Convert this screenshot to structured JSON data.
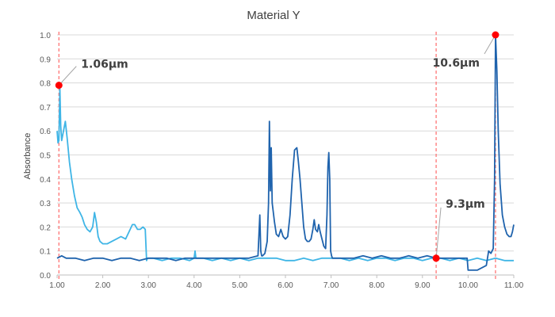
{
  "chart_data": {
    "type": "line",
    "title": "Material Y",
    "ylabel": "Absorbance",
    "xlabel": "",
    "xlim": [
      1.0,
      11.0
    ],
    "ylim": [
      0.0,
      1.0
    ],
    "x_ticks": [
      "1.00",
      "2.00",
      "3.00",
      "4.00",
      "5.00",
      "6.00",
      "7.00",
      "8.00",
      "9.00",
      "10.00",
      "11.00"
    ],
    "x_tick_values": [
      1,
      2,
      3,
      4,
      5,
      6,
      7,
      8,
      9,
      10,
      11
    ],
    "y_ticks": [
      "0.0",
      "0.1",
      "0.2",
      "0.3",
      "0.4",
      "0.5",
      "0.6",
      "0.7",
      "0.8",
      "0.9",
      "1.0"
    ],
    "y_tick_values": [
      0,
      0.1,
      0.2,
      0.3,
      0.4,
      0.5,
      0.6,
      0.7,
      0.8,
      0.9,
      1.0
    ],
    "grid": true,
    "colors": {
      "light": "#3fb5e6",
      "dark": "#1f63ad",
      "marker": "#ff0000",
      "guide": "#ff6b6b"
    },
    "series": [
      {
        "color": "#3fb5e6",
        "x": [
          1.0,
          1.02,
          1.04,
          1.06,
          1.08,
          1.1,
          1.14,
          1.18,
          1.22,
          1.27,
          1.32,
          1.38,
          1.44,
          1.5,
          1.55,
          1.6,
          1.66,
          1.72,
          1.78,
          1.82,
          1.86,
          1.9,
          1.94,
          2.0,
          2.1,
          2.2,
          2.3,
          2.4,
          2.5,
          2.6,
          2.65,
          2.7,
          2.76,
          2.82,
          2.88,
          2.93,
          2.96,
          2.98,
          3.0,
          3.1,
          3.3,
          3.5,
          3.7,
          3.9,
          4.0,
          4.02,
          4.04,
          4.2,
          4.4,
          4.6,
          4.8,
          5.0,
          5.2,
          5.4,
          5.6,
          5.8,
          6.0,
          6.2,
          6.4,
          6.6,
          6.8,
          7.0,
          7.2,
          7.4,
          7.6,
          7.8,
          8.0,
          8.2,
          8.4,
          8.6,
          8.8,
          9.0,
          9.2,
          9.4,
          9.6,
          9.8,
          10.0,
          10.2,
          10.4,
          10.6,
          10.8,
          11.0
        ],
        "y": [
          0.6,
          0.55,
          0.56,
          0.78,
          0.62,
          0.56,
          0.6,
          0.64,
          0.57,
          0.47,
          0.4,
          0.33,
          0.28,
          0.26,
          0.24,
          0.21,
          0.19,
          0.18,
          0.2,
          0.26,
          0.22,
          0.16,
          0.14,
          0.13,
          0.13,
          0.14,
          0.15,
          0.16,
          0.15,
          0.19,
          0.21,
          0.21,
          0.19,
          0.19,
          0.2,
          0.19,
          0.06,
          0.07,
          0.07,
          0.07,
          0.06,
          0.07,
          0.07,
          0.06,
          0.07,
          0.1,
          0.07,
          0.07,
          0.06,
          0.07,
          0.06,
          0.07,
          0.06,
          0.07,
          0.07,
          0.07,
          0.06,
          0.06,
          0.07,
          0.06,
          0.07,
          0.07,
          0.07,
          0.06,
          0.07,
          0.06,
          0.07,
          0.07,
          0.06,
          0.07,
          0.07,
          0.06,
          0.07,
          0.07,
          0.06,
          0.07,
          0.06,
          0.07,
          0.06,
          0.07,
          0.06,
          0.06
        ]
      },
      {
        "color": "#1f63ad",
        "x": [
          1.0,
          1.1,
          1.2,
          1.4,
          1.6,
          1.8,
          2.0,
          2.2,
          2.4,
          2.6,
          2.8,
          3.0,
          3.2,
          3.4,
          3.6,
          3.8,
          4.0,
          4.2,
          4.4,
          4.6,
          4.8,
          5.0,
          5.2,
          5.4,
          5.44,
          5.46,
          5.48,
          5.5,
          5.55,
          5.6,
          5.63,
          5.65,
          5.67,
          5.69,
          5.71,
          5.73,
          5.76,
          5.8,
          5.85,
          5.9,
          5.95,
          6.0,
          6.05,
          6.1,
          6.15,
          6.2,
          6.25,
          6.28,
          6.32,
          6.36,
          6.4,
          6.44,
          6.48,
          6.52,
          6.56,
          6.6,
          6.63,
          6.66,
          6.7,
          6.73,
          6.76,
          6.8,
          6.84,
          6.88,
          6.91,
          6.93,
          6.95,
          6.97,
          6.99,
          7.01,
          7.03,
          7.1,
          7.3,
          7.5,
          7.7,
          7.9,
          8.1,
          8.3,
          8.5,
          8.7,
          8.9,
          9.1,
          9.3,
          9.5,
          9.7,
          9.9,
          9.98,
          10.0,
          10.2,
          10.4,
          10.45,
          10.5,
          10.55,
          10.58,
          10.6,
          10.63,
          10.66,
          10.7,
          10.75,
          10.8,
          10.85,
          10.9,
          10.94,
          10.97,
          11.0
        ],
        "y": [
          0.07,
          0.08,
          0.07,
          0.07,
          0.06,
          0.07,
          0.07,
          0.06,
          0.07,
          0.07,
          0.06,
          0.07,
          0.07,
          0.07,
          0.06,
          0.07,
          0.07,
          0.07,
          0.07,
          0.07,
          0.07,
          0.07,
          0.07,
          0.08,
          0.25,
          0.1,
          0.08,
          0.08,
          0.09,
          0.14,
          0.3,
          0.64,
          0.35,
          0.53,
          0.3,
          0.27,
          0.22,
          0.17,
          0.16,
          0.19,
          0.16,
          0.15,
          0.16,
          0.25,
          0.4,
          0.52,
          0.53,
          0.48,
          0.4,
          0.3,
          0.2,
          0.15,
          0.14,
          0.14,
          0.15,
          0.19,
          0.23,
          0.19,
          0.18,
          0.21,
          0.18,
          0.15,
          0.12,
          0.11,
          0.25,
          0.45,
          0.51,
          0.4,
          0.1,
          0.08,
          0.07,
          0.07,
          0.07,
          0.07,
          0.08,
          0.07,
          0.08,
          0.07,
          0.07,
          0.08,
          0.07,
          0.08,
          0.07,
          0.07,
          0.07,
          0.07,
          0.07,
          0.02,
          0.02,
          0.04,
          0.1,
          0.09,
          0.11,
          0.4,
          1.0,
          0.85,
          0.6,
          0.38,
          0.25,
          0.2,
          0.17,
          0.16,
          0.16,
          0.18,
          0.21
        ]
      }
    ],
    "annotations": [
      {
        "label": "1.06μm",
        "x": 1.04,
        "y": 0.79
      },
      {
        "label": "10.6μm",
        "x": 10.6,
        "y": 1.0
      },
      {
        "label": "9.3μm",
        "x": 9.3,
        "y": 0.07
      }
    ],
    "reference_lines_x": [
      1.04,
      9.3,
      10.6
    ]
  }
}
